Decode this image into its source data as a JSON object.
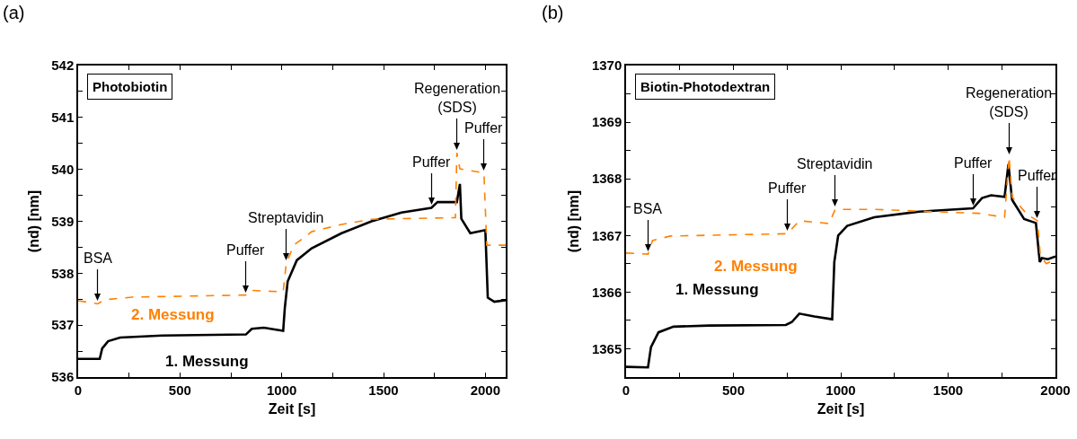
{
  "chart_data": [
    {
      "type": "line",
      "title": "(a)",
      "xlabel": "Zeit [s]",
      "ylabel": "(nd) [nm]",
      "xlim": [
        0,
        2100
      ],
      "ylim": [
        536,
        542
      ],
      "xticks": [
        0,
        {
          "value": 250,
          "label": null
        },
        500,
        {
          "value": 750,
          "label": null
        },
        1000,
        {
          "value": 1250,
          "label": null
        },
        1500,
        {
          "value": 1750,
          "label": null
        },
        2000
      ],
      "yticks": [
        536,
        {
          "value": 536.5,
          "label": null
        },
        537,
        {
          "value": 537.5,
          "label": null
        },
        538,
        {
          "value": 538.5,
          "label": null
        },
        539,
        {
          "value": 539.5,
          "label": null
        },
        540,
        {
          "value": 540.5,
          "label": null
        },
        541,
        {
          "value": 541.5,
          "label": null
        },
        542
      ],
      "grid": false,
      "legend": false,
      "marker": "none",
      "annotations": [
        "Photobiotin",
        {
          "text": "BSA",
          "x": 96,
          "y": 537.41
        },
        {
          "text": "Puffer",
          "x": 824,
          "y": 537.58
        },
        {
          "text": "Streptavidin",
          "x": 1022,
          "y": 538.19
        },
        {
          "text": "Puffer",
          "x": 1735,
          "y": 539.26
        },
        {
          "text": "Regeneration\n(SDS)",
          "x": 1860,
          "y": 540.32
        },
        {
          "text": "Puffer",
          "x": 1993,
          "y": 539.93
        }
      ],
      "series": [
        {
          "name": "1. Messung",
          "color": "#000000",
          "line_style": "solid",
          "x": [
            0,
            106,
            118,
            147,
            206,
            412,
            824,
            853,
            912,
            1007,
            1015,
            1029,
            1074,
            1147,
            1294,
            1441,
            1588,
            1735,
            1765,
            1853,
            1860,
            1875,
            1882,
            1926,
            2000,
            2012,
            2044,
            2100
          ],
          "values": [
            536.35,
            536.35,
            536.55,
            536.69,
            536.76,
            536.8,
            536.82,
            536.93,
            536.95,
            536.89,
            537.33,
            537.84,
            538.25,
            538.48,
            538.77,
            539.0,
            539.17,
            539.26,
            539.37,
            539.37,
            539.37,
            539.72,
            539.05,
            538.77,
            538.83,
            537.53,
            537.45,
            537.48
          ]
        },
        {
          "name": "2. Messung",
          "color": "#ff8000",
          "line_style": "dashed",
          "x": [
            0,
            96,
            132,
            265,
            824,
            846,
            1007,
            1022,
            1059,
            1147,
            1294,
            1441,
            1853,
            1860,
            1875,
            1993,
            2007,
            2100
          ],
          "values": [
            537.47,
            537.41,
            537.49,
            537.54,
            537.58,
            537.67,
            537.64,
            538.19,
            538.54,
            538.8,
            538.94,
            539.04,
            539.07,
            540.32,
            540.01,
            539.93,
            538.54,
            538.54
          ]
        }
      ]
    },
    {
      "type": "line",
      "title": "(b)",
      "xlabel": "Zeit [s]",
      "ylabel": "(nd) [nm]",
      "xlim": [
        0,
        2000
      ],
      "ylim": [
        1364.5,
        1370
      ],
      "xticks": [
        0,
        {
          "value": 250,
          "label": null
        },
        500,
        {
          "value": 750,
          "label": null
        },
        1000,
        {
          "value": 1250,
          "label": null
        },
        1500,
        {
          "value": 1750,
          "label": null
        },
        2000
      ],
      "yticks": [
        1365,
        {
          "value": 1365.5,
          "label": null
        },
        1366,
        {
          "value": 1366.5,
          "label": null
        },
        1367,
        {
          "value": 1367.5,
          "label": null
        },
        1368,
        {
          "value": 1368.5,
          "label": null
        },
        1369,
        {
          "value": 1369.5,
          "label": null
        },
        1370
      ],
      "grid": false,
      "legend": false,
      "marker": "none",
      "annotations": [
        "Biotin-Photodextran",
        {
          "text": "BSA",
          "x": 102,
          "y": 1366.67
        },
        {
          "text": "Puffer",
          "x": 751,
          "y": 1367.03
        },
        {
          "text": "Streptavidin",
          "x": 974,
          "y": 1367.46
        },
        {
          "text": "Puffer",
          "x": 1616,
          "y": 1367.48
        },
        {
          "text": "Regeneration\n(SDS)",
          "x": 1784,
          "y": 1368.39
        },
        {
          "text": "Puffer",
          "x": 1916,
          "y": 1367.26
        }
      ],
      "series": [
        {
          "name": "1. Messung",
          "color": "#000000",
          "line_style": "solid",
          "x": [
            0,
            102,
            116,
            151,
            221,
            388,
            744,
            772,
            807,
            877,
            960,
            970,
            988,
            1030,
            1156,
            1365,
            1616,
            1658,
            1700,
            1763,
            1781,
            1798,
            1854,
            1909,
            1927,
            1937,
            1965,
            2000
          ],
          "values": [
            1364.68,
            1364.67,
            1365.03,
            1365.29,
            1365.39,
            1365.41,
            1365.42,
            1365.47,
            1365.62,
            1365.57,
            1365.52,
            1366.53,
            1367.0,
            1367.17,
            1367.32,
            1367.42,
            1367.48,
            1367.66,
            1367.71,
            1367.68,
            1368.26,
            1367.63,
            1367.29,
            1367.22,
            1366.53,
            1366.6,
            1366.58,
            1366.63
          ]
        },
        {
          "name": "2. Messung",
          "color": "#ff8000",
          "line_style": "dashed",
          "x": [
            0,
            102,
            123,
            207,
            751,
            807,
            946,
            974,
            1156,
            1644,
            1763,
            1784,
            1798,
            1868,
            1916,
            1930,
            1958,
            2000
          ],
          "values": [
            1366.69,
            1366.67,
            1366.91,
            1366.99,
            1367.03,
            1367.26,
            1367.21,
            1367.46,
            1367.46,
            1367.39,
            1367.32,
            1368.39,
            1367.68,
            1367.37,
            1367.26,
            1366.63,
            1366.5,
            1366.58
          ]
        }
      ]
    }
  ]
}
